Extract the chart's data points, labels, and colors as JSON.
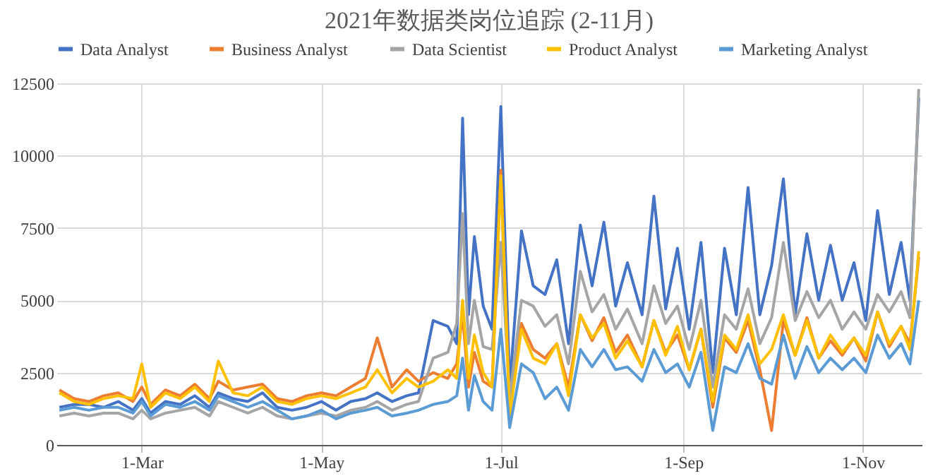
{
  "chart_data": {
    "type": "line",
    "title": "2021年数据类岗位追踪 (2-11月)",
    "x": [
      "2021-02-01",
      "2021-02-06",
      "2021-02-11",
      "2021-02-16",
      "2021-02-21",
      "2021-02-26",
      "2021-03-01",
      "2021-03-04",
      "2021-03-09",
      "2021-03-14",
      "2021-03-19",
      "2021-03-24",
      "2021-03-27",
      "2021-04-01",
      "2021-04-06",
      "2021-04-11",
      "2021-04-16",
      "2021-04-21",
      "2021-04-26",
      "2021-05-01",
      "2021-05-06",
      "2021-05-11",
      "2021-05-16",
      "2021-05-20",
      "2021-05-25",
      "2021-05-30",
      "2021-06-03",
      "2021-06-08",
      "2021-06-13",
      "2021-06-16",
      "2021-06-18",
      "2021-06-20",
      "2021-06-22",
      "2021-06-25",
      "2021-06-28",
      "2021-07-01",
      "2021-07-04",
      "2021-07-08",
      "2021-07-12",
      "2021-07-16",
      "2021-07-20",
      "2021-07-24",
      "2021-07-28",
      "2021-08-01",
      "2021-08-05",
      "2021-08-09",
      "2021-08-13",
      "2021-08-18",
      "2021-08-22",
      "2021-08-26",
      "2021-08-30",
      "2021-09-03",
      "2021-09-07",
      "2021-09-11",
      "2021-09-15",
      "2021-09-19",
      "2021-09-23",
      "2021-09-27",
      "2021-10-01",
      "2021-10-05",
      "2021-10-09",
      "2021-10-13",
      "2021-10-17",
      "2021-10-21",
      "2021-10-25",
      "2021-10-29",
      "2021-11-02",
      "2021-11-06",
      "2021-11-10",
      "2021-11-14",
      "2021-11-17",
      "2021-11-20"
    ],
    "series": [
      {
        "name": "Data Analyst",
        "color": "#4472c4",
        "values": [
          1300,
          1400,
          1400,
          1300,
          1500,
          1200,
          1600,
          1100,
          1500,
          1400,
          1700,
          1300,
          1800,
          1600,
          1500,
          1800,
          1300,
          1200,
          1300,
          1500,
          1200,
          1500,
          1600,
          1800,
          1500,
          1700,
          1800,
          4300,
          4100,
          3500,
          11300,
          4500,
          7200,
          4800,
          4000,
          11700,
          2000,
          7400,
          5500,
          5200,
          6400,
          3500,
          7600,
          5500,
          7700,
          4800,
          6300,
          4500,
          8600,
          4700,
          6800,
          4000,
          7000,
          2500,
          6800,
          4500,
          8900,
          4500,
          6200,
          9200,
          4500,
          7300,
          5000,
          6900,
          5000,
          6300,
          4300,
          8100,
          5200,
          7000,
          5000,
          12000
        ]
      },
      {
        "name": "Business Analyst",
        "color": "#ed7d31",
        "values": [
          1900,
          1600,
          1500,
          1700,
          1800,
          1500,
          2000,
          1400,
          1900,
          1700,
          2100,
          1600,
          2200,
          1900,
          2000,
          2100,
          1600,
          1500,
          1700,
          1800,
          1700,
          2000,
          2300,
          3700,
          2000,
          2600,
          2200,
          2500,
          2300,
          2800,
          4500,
          2000,
          3200,
          2200,
          2000,
          9500,
          1200,
          4200,
          3300,
          3000,
          3500,
          2000,
          4500,
          3600,
          4400,
          3200,
          3800,
          2700,
          4300,
          3200,
          3800,
          2600,
          4000,
          1300,
          3700,
          3200,
          4300,
          2600,
          500,
          4300,
          3100,
          4400,
          3000,
          3600,
          3100,
          3700,
          2900,
          4600,
          3400,
          4100,
          3500,
          6500
        ]
      },
      {
        "name": "Data Scientist",
        "color": "#a5a5a5",
        "values": [
          1000,
          1100,
          1000,
          1100,
          1100,
          900,
          1200,
          900,
          1100,
          1200,
          1300,
          1000,
          1500,
          1300,
          1100,
          1300,
          1000,
          900,
          1000,
          1100,
          1000,
          1200,
          1300,
          1500,
          1200,
          1400,
          1500,
          3000,
          3200,
          4200,
          8000,
          3500,
          5000,
          3400,
          3300,
          7000,
          1600,
          5000,
          4800,
          4100,
          4500,
          2800,
          6000,
          4600,
          5200,
          4000,
          4700,
          3500,
          5500,
          4200,
          4800,
          3300,
          5000,
          2000,
          4500,
          4000,
          5400,
          3500,
          4400,
          7000,
          4300,
          5300,
          4400,
          5000,
          4000,
          4600,
          4000,
          5200,
          4600,
          5300,
          4400,
          12300
        ]
      },
      {
        "name": "Product Analyst",
        "color": "#ffc000",
        "values": [
          1800,
          1500,
          1400,
          1600,
          1700,
          1600,
          2800,
          1300,
          1800,
          1600,
          2000,
          1500,
          2900,
          1800,
          1700,
          2000,
          1500,
          1400,
          1600,
          1700,
          1600,
          1800,
          2000,
          2600,
          1800,
          2300,
          2000,
          2200,
          2600,
          2300,
          5000,
          2300,
          3800,
          2500,
          2000,
          9300,
          1000,
          4000,
          3000,
          2800,
          3500,
          1700,
          4500,
          3700,
          4200,
          3000,
          3600,
          2700,
          4300,
          3100,
          4100,
          2600,
          4000,
          1500,
          3800,
          3300,
          4500,
          2800,
          3300,
          4500,
          3100,
          4300,
          3000,
          3800,
          3200,
          3700,
          3100,
          4600,
          3500,
          4100,
          3300,
          6700
        ]
      },
      {
        "name": "Marketing Analyst",
        "color": "#5b9bd5",
        "values": [
          1200,
          1300,
          1200,
          1300,
          1300,
          1100,
          1500,
          1000,
          1400,
          1300,
          1500,
          1200,
          1700,
          1500,
          1300,
          1500,
          1200,
          900,
          1000,
          1200,
          900,
          1100,
          1200,
          1300,
          1000,
          1100,
          1200,
          1400,
          1500,
          1700,
          3000,
          1200,
          2400,
          1500,
          1200,
          4000,
          600,
          2800,
          2500,
          1600,
          2000,
          1200,
          3300,
          2700,
          3300,
          2600,
          2700,
          2200,
          3300,
          2500,
          2800,
          2000,
          3200,
          500,
          2700,
          2500,
          3500,
          2300,
          2100,
          3800,
          2300,
          3400,
          2500,
          3000,
          2600,
          3000,
          2500,
          3800,
          3000,
          3500,
          2800,
          5000
        ]
      }
    ],
    "xlim": [
      "2021-01-31",
      "2021-11-21"
    ],
    "xticks": [
      {
        "value": "2021-03-01",
        "label": "1-Mar"
      },
      {
        "value": "2021-05-01",
        "label": "1-May"
      },
      {
        "value": "2021-07-01",
        "label": "1-Jul"
      },
      {
        "value": "2021-09-01",
        "label": "1-Sep"
      },
      {
        "value": "2021-11-01",
        "label": "1-Nov"
      }
    ],
    "ylim": [
      0,
      12500
    ],
    "yticks": [
      0,
      2500,
      5000,
      7500,
      10000,
      12500
    ],
    "grid": true,
    "legend": "top",
    "line_style": "solid",
    "marker": "none"
  }
}
